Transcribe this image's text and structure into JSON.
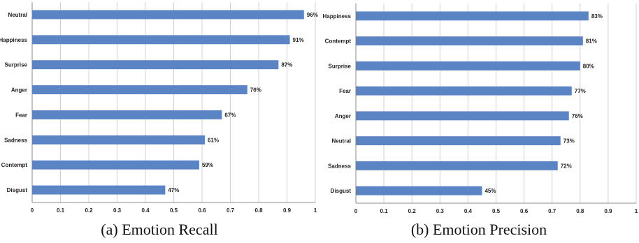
{
  "chart_data": [
    {
      "type": "bar",
      "orientation": "horizontal",
      "categories": [
        "Neutral",
        "Happiness",
        "Surprise",
        "Anger",
        "Fear",
        "Sadness",
        "Contempt",
        "Disgust"
      ],
      "values": [
        0.96,
        0.91,
        0.87,
        0.76,
        0.67,
        0.61,
        0.59,
        0.47
      ],
      "data_labels": [
        "96%",
        "91%",
        "87%",
        "76%",
        "67%",
        "61%",
        "59%",
        "47%"
      ],
      "xlim": [
        0,
        1
      ],
      "xticks": [
        "0",
        "0.1",
        "0.2",
        "0.3",
        "0.4",
        "0.5",
        "0.6",
        "0.7",
        "0.8",
        "0.9",
        "1"
      ],
      "caption": "(a) Emotion Recall",
      "bar_color": "#5b84c4",
      "grid": true
    },
    {
      "type": "bar",
      "orientation": "horizontal",
      "categories": [
        "Happiness",
        "Contempt",
        "Surprise",
        "Fear",
        "Anger",
        "Neutral",
        "Sadness",
        "Disgust"
      ],
      "values": [
        0.83,
        0.81,
        0.8,
        0.77,
        0.76,
        0.73,
        0.72,
        0.45
      ],
      "data_labels": [
        "83%",
        "81%",
        "80%",
        "77%",
        "76%",
        "73%",
        "72%",
        "45%"
      ],
      "xlim": [
        0,
        1
      ],
      "xticks": [
        "0",
        "0.1",
        "0.2",
        "0.3",
        "0.4",
        "0.5",
        "0.6",
        "0.7",
        "0.8",
        "0.9",
        "1"
      ],
      "caption": "(b) Emotion Precision",
      "bar_color": "#5b84c4",
      "grid": true
    }
  ]
}
